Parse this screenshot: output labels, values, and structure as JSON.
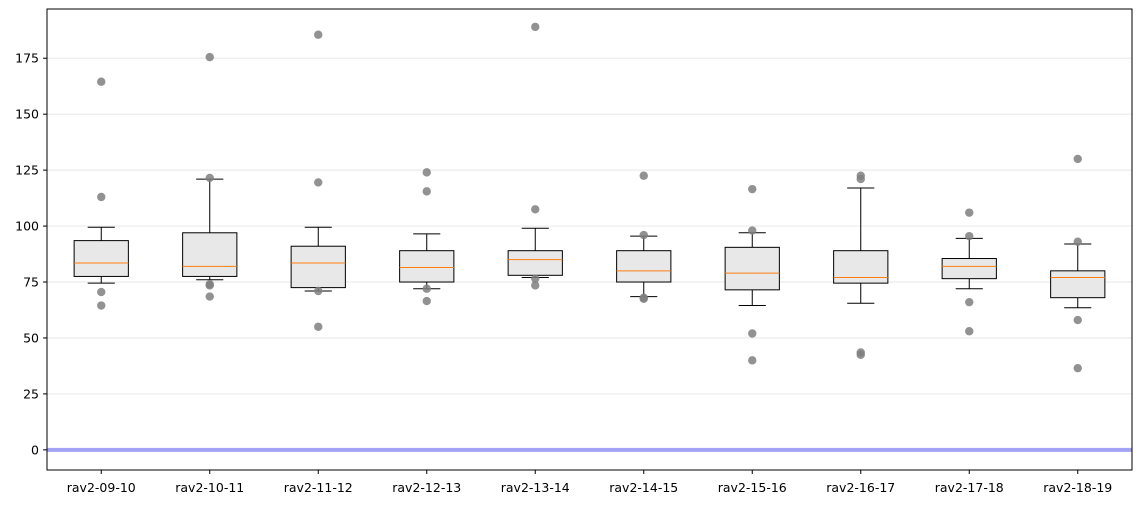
{
  "chart_data": {
    "type": "box",
    "title": "",
    "xlabel": "",
    "ylabel": "",
    "ylim": [
      -9,
      197
    ],
    "yticks": [
      0,
      25,
      50,
      75,
      100,
      125,
      150,
      175
    ],
    "grid": "horizontal",
    "reference_line": {
      "value": 0,
      "color": "#a3a3f5"
    },
    "colors": {
      "box_fill": "#e8e8e8",
      "median": "#ff7f0e",
      "outlier": "#7f7f7f",
      "grid": "#ececec"
    },
    "categories": [
      "rav2-09-10",
      "rav2-10-11",
      "rav2-11-12",
      "rav2-12-13",
      "rav2-13-14",
      "rav2-14-15",
      "rav2-15-16",
      "rav2-16-17",
      "rav2-17-18",
      "rav2-18-19"
    ],
    "boxes": [
      {
        "q1": 77.5,
        "median": 83.5,
        "q3": 93.5,
        "whisker_low": 74.5,
        "whisker_high": 99.5,
        "points": [
          164.5,
          113,
          70.5,
          64.5
        ]
      },
      {
        "q1": 77.5,
        "median": 82,
        "q3": 97,
        "whisker_low": 76,
        "whisker_high": 121,
        "points": [
          175.5,
          121.5,
          74,
          73.5,
          68.5
        ]
      },
      {
        "q1": 72.5,
        "median": 83.5,
        "q3": 91,
        "whisker_low": 71,
        "whisker_high": 99.5,
        "points": [
          185.5,
          119.5,
          71,
          55
        ]
      },
      {
        "q1": 75,
        "median": 81.5,
        "q3": 89,
        "whisker_low": 72,
        "whisker_high": 96.5,
        "points": [
          124,
          115.5,
          72,
          66.5
        ]
      },
      {
        "q1": 78,
        "median": 85,
        "q3": 89,
        "whisker_low": 77,
        "whisker_high": 99,
        "points": [
          189,
          107.5,
          76.5,
          73.5
        ]
      },
      {
        "q1": 75,
        "median": 80,
        "q3": 89,
        "whisker_low": 68.5,
        "whisker_high": 95.5,
        "points": [
          122.5,
          96,
          68,
          67.5
        ]
      },
      {
        "q1": 71.5,
        "median": 79,
        "q3": 90.5,
        "whisker_low": 64.5,
        "whisker_high": 97,
        "points": [
          116.5,
          98,
          52,
          40
        ]
      },
      {
        "q1": 74.5,
        "median": 77,
        "q3": 89,
        "whisker_low": 65.5,
        "whisker_high": 117,
        "points": [
          122.5,
          121,
          43.5,
          42.5
        ]
      },
      {
        "q1": 76.5,
        "median": 82,
        "q3": 85.5,
        "whisker_low": 72,
        "whisker_high": 94.5,
        "points": [
          106,
          95.5,
          66,
          53
        ]
      },
      {
        "q1": 68,
        "median": 77,
        "q3": 80,
        "whisker_low": 63.5,
        "whisker_high": 92,
        "points": [
          130,
          93,
          58,
          36.5
        ]
      }
    ]
  }
}
